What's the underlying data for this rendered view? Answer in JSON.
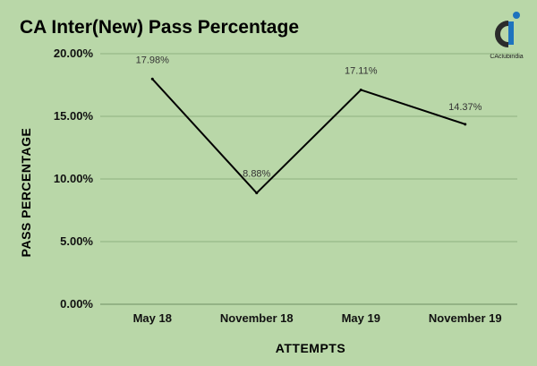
{
  "chart_data": {
    "type": "line",
    "title": "CA Inter(New) Pass Percentage",
    "xlabel": "ATTEMPTS",
    "ylabel": "PASS PERCENTAGE",
    "categories": [
      "May 18",
      "November 18",
      "May 19",
      "November 19"
    ],
    "series": [
      {
        "values": [
          17.98,
          8.88,
          17.11,
          14.37
        ],
        "labels": [
          "17.98%",
          "8.88%",
          "17.11%",
          "14.37%"
        ]
      }
    ],
    "yticks": [
      0,
      5,
      10,
      15,
      20
    ],
    "ytick_labels": [
      "0.00%",
      "5.00%",
      "10.00%",
      "15.00%",
      "20.00%"
    ],
    "ylim": [
      0,
      20
    ],
    "grid": true,
    "line_color": "#000000"
  },
  "logo": {
    "text": "CAclubindia",
    "colors": {
      "dark": "#2b2b2b",
      "accent": "#1e73be"
    }
  }
}
